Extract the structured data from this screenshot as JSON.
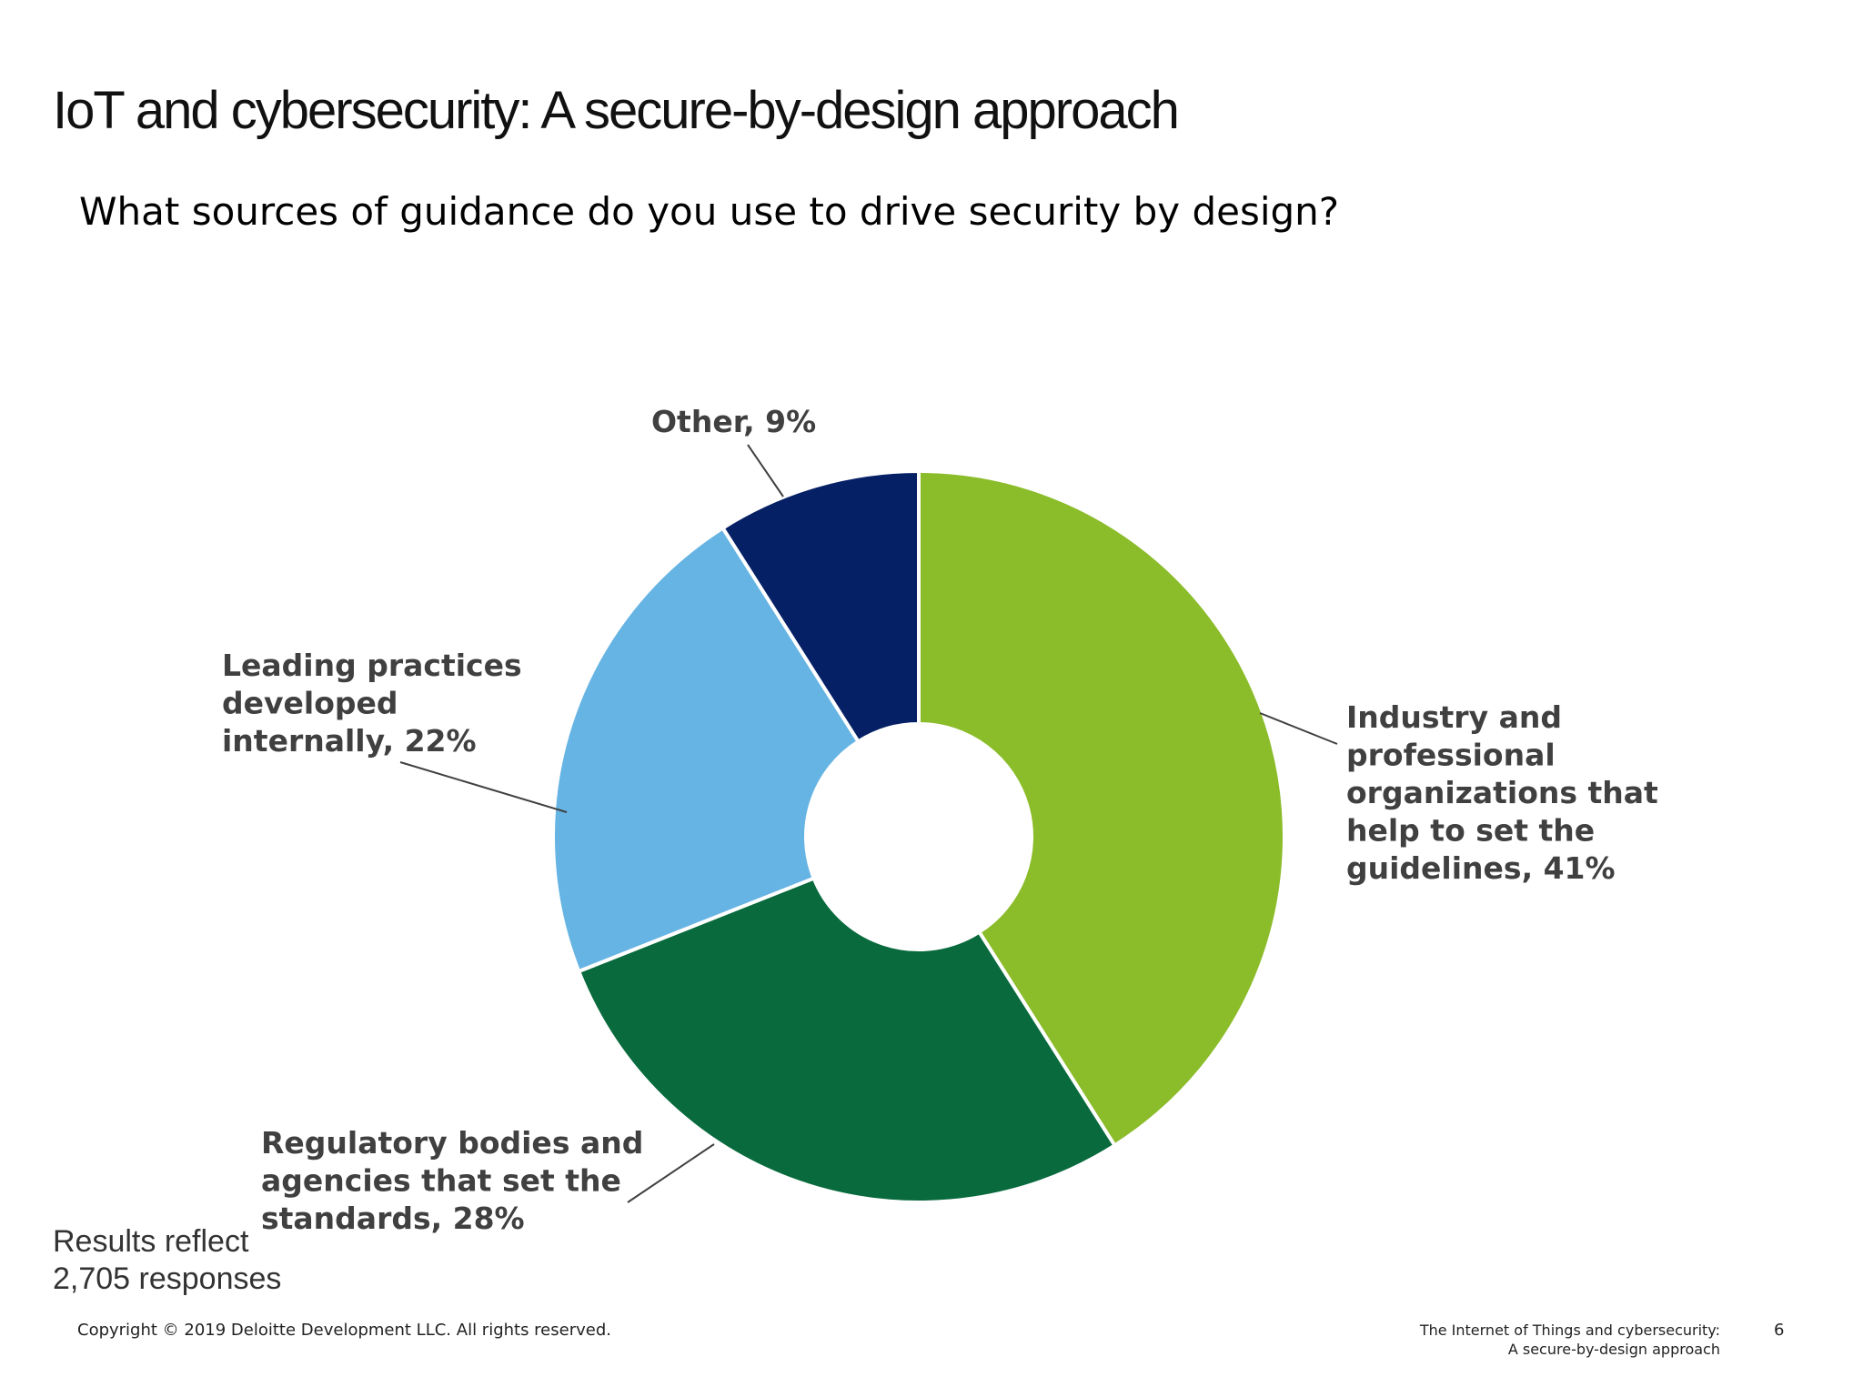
{
  "slide": {
    "title": "IoT and cybersecurity: A secure-by-design approach",
    "question": "What sources of guidance do you use to drive security by design?"
  },
  "chart_data": {
    "type": "pie",
    "variant": "donut",
    "title": "What sources of guidance do you use to drive security by design?",
    "unit": "%",
    "slices": [
      {
        "label": "Industry and professional organizations that help to set the guidelines",
        "value": 41,
        "label_text": "Industry and professional organizations that help to set the guidelines, 41%",
        "label_lines": [
          "Industry and",
          "professional",
          "organizations that",
          "help to set the",
          "guidelines, 41%"
        ],
        "color": "#8BBC2A"
      },
      {
        "label": "Regulatory bodies and agencies that set the standards",
        "value": 28,
        "label_text": "Regulatory bodies and agencies that set the standards, 28%",
        "label_lines": [
          "Regulatory bodies and",
          "agencies that set the",
          "standards, 28%"
        ],
        "color": "#086A3D"
      },
      {
        "label": "Leading practices developed internally",
        "value": 22,
        "label_text": "Leading practices developed internally, 22%",
        "label_lines": [
          "Leading practices",
          "developed",
          "internally, 22%"
        ],
        "color": "#66B4E4"
      },
      {
        "label": "Other",
        "value": 9,
        "label_text": "Other, 9%",
        "label_lines": [
          "Other, 9%"
        ],
        "color": "#062066"
      }
    ],
    "start_angle_deg": 0,
    "direction": "clockwise",
    "legend": "none",
    "label_color": "#404040",
    "leader_line_color": "#404040"
  },
  "footnote": {
    "line1": "Results reflect",
    "line2": "2,705 responses"
  },
  "footer": {
    "copyright": "Copyright © 2019 Deloitte Development LLC. All rights reserved.",
    "title_line1": "The Internet of Things and cybersecurity:",
    "title_line2": "A secure-by-design approach",
    "page_number": "6"
  }
}
